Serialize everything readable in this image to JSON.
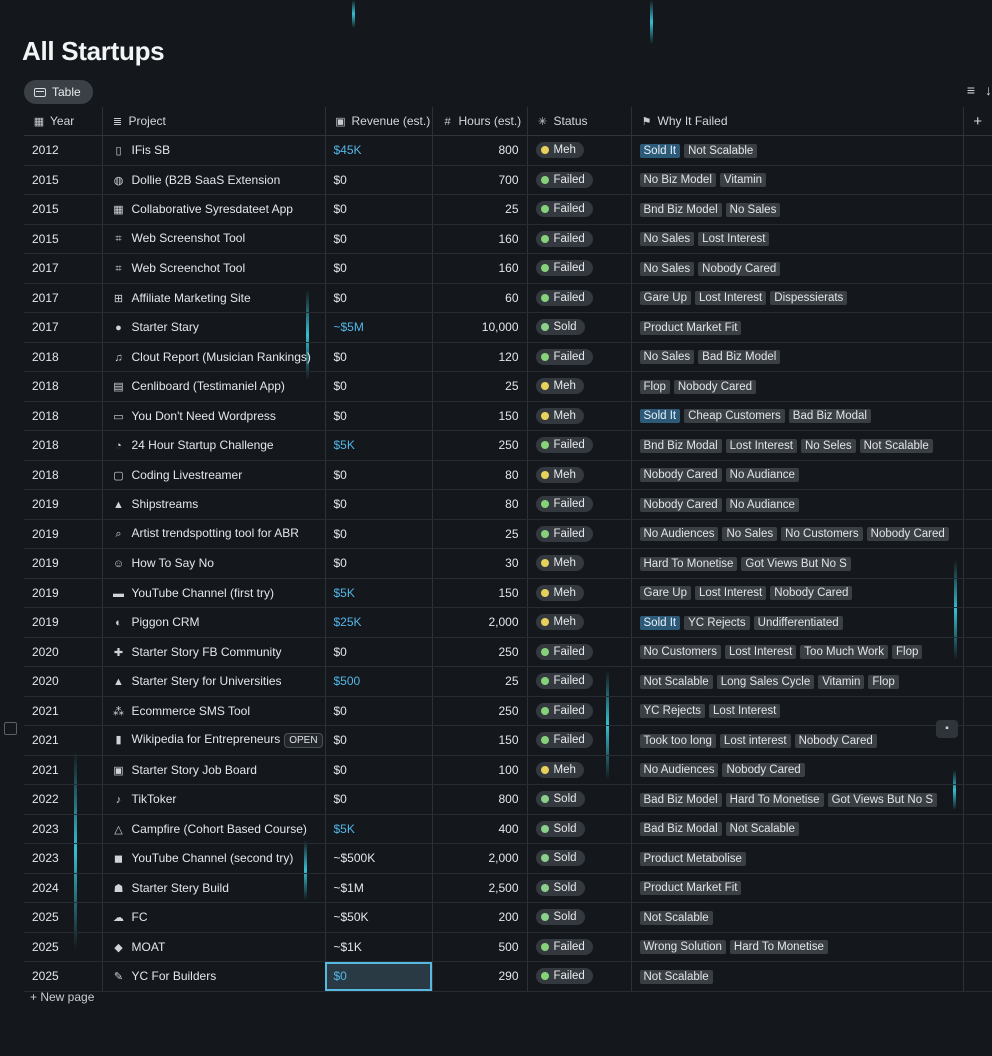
{
  "title": "All Startups",
  "view_tab": "Table",
  "columns": {
    "year": "Year",
    "project": "Project",
    "revenue": "Revenue (est.)",
    "hours": "Hours (est.)",
    "status": "Status",
    "why": "Why It Failed"
  },
  "colors": {
    "failed": "#86d27a",
    "meh": "#e6d25a",
    "sold": "#8ad08a"
  },
  "rows": [
    {
      "year": "2012",
      "icon": "phone-icon",
      "g": "▯",
      "project": "IFis SB",
      "revenue": "$45K",
      "rev_blue": true,
      "hours": "800",
      "status": "Meh",
      "tags": [
        "Sold It",
        "Not Scalable"
      ],
      "hl": [
        0
      ]
    },
    {
      "year": "2015",
      "icon": "globe-icon",
      "g": "◍",
      "project": "Dollie (B2B SaaS Extension",
      "revenue": "$0",
      "hours": "700",
      "status": "Failed",
      "tags": [
        "No Biz Model",
        "Vitamin"
      ]
    },
    {
      "year": "2015",
      "icon": "spreadsheet-icon",
      "g": "▦",
      "project": "Collaborative Syresdateet App",
      "revenue": "$0",
      "hours": "25",
      "status": "Failed",
      "tags": [
        "Bnd Biz Model",
        "No Sales"
      ]
    },
    {
      "year": "2015",
      "icon": "crop-icon",
      "g": "⌗",
      "project": "Web Screenshot Tool",
      "revenue": "$0",
      "hours": "160",
      "status": "Failed",
      "tags": [
        "No Sales",
        "Lost Interest"
      ]
    },
    {
      "year": "2017",
      "icon": "crop-icon",
      "g": "⌗",
      "project": "Web Screenchot Tool",
      "revenue": "$0",
      "hours": "160",
      "status": "Failed",
      "tags": [
        "No Sales",
        "Nobody Cared"
      ]
    },
    {
      "year": "2017",
      "icon": "grid-icon",
      "g": "⊞",
      "project": "Affiliate Marketing Site",
      "revenue": "$0",
      "hours": "60",
      "status": "Failed",
      "tags": [
        "Gare Up",
        "Lost Interest",
        "Dispessierats"
      ]
    },
    {
      "year": "2017",
      "icon": "circle-icon",
      "g": "●",
      "project": "Starter Stary",
      "revenue": "~$5M",
      "rev_blue": true,
      "hours": "10,000",
      "status": "Sold",
      "tags": [
        "Product Market Fit"
      ]
    },
    {
      "year": "2018",
      "icon": "music-icon",
      "g": "♫",
      "project": "Clout Report (Musician Rankings)",
      "revenue": "$0",
      "hours": "120",
      "status": "Failed",
      "tags": [
        "No Sales",
        "Bad Biz Model"
      ]
    },
    {
      "year": "2018",
      "icon": "clipboard-icon",
      "g": "▤",
      "project": "Cenliboard (Testimaniel App)",
      "revenue": "$0",
      "hours": "25",
      "status": "Meh",
      "tags": [
        "Flop",
        "Nobody Cared"
      ]
    },
    {
      "year": "2018",
      "icon": "window-icon",
      "g": "▭",
      "project": "You Don't Need Wordpress",
      "revenue": "$0",
      "hours": "150",
      "status": "Meh",
      "tags": [
        "Sold It",
        "Cheap Customers",
        "Bad Biz Modal"
      ],
      "hl": [
        0
      ]
    },
    {
      "year": "2018",
      "icon": "clock-icon",
      "g": "◔",
      "project": "24 Hour Startup Challenge",
      "revenue": "$5K",
      "rev_blue": true,
      "hours": "250",
      "status": "Failed",
      "tags": [
        "Bnd Biz Modal",
        "Lost Interest",
        "No Seles",
        "Not Scalable"
      ]
    },
    {
      "year": "2018",
      "icon": "file-icon",
      "g": "▢",
      "project": "Coding Livestreamer",
      "revenue": "$0",
      "hours": "80",
      "status": "Meh",
      "tags": [
        "Nobody Cared",
        "No Audiance"
      ]
    },
    {
      "year": "2019",
      "icon": "ship-icon",
      "g": "▲",
      "project": "Shipstreams",
      "revenue": "$0",
      "hours": "80",
      "status": "Failed",
      "tags": [
        "Nobody Cared",
        "No Audiance"
      ]
    },
    {
      "year": "2019",
      "icon": "search-icon",
      "g": "⌕",
      "project": "Artist trendspotting tool for ABR",
      "revenue": "$0",
      "hours": "25",
      "status": "Failed",
      "tags": [
        "No Audiences",
        "No Sales",
        "No Customers",
        "Nobody Cared"
      ]
    },
    {
      "year": "2019",
      "icon": "person-icon",
      "g": "☺",
      "project": "How To Say No",
      "revenue": "$0",
      "hours": "30",
      "status": "Meh",
      "tags": [
        "Hard To Monetise",
        "Got Views But No S"
      ]
    },
    {
      "year": "2019",
      "icon": "tv-icon",
      "g": "▬",
      "project": "YouTube Channel (first try)",
      "revenue": "$5K",
      "rev_blue": true,
      "hours": "150",
      "status": "Meh",
      "tags": [
        "Gare Up",
        "Lost Interest",
        "Nobody Cared"
      ]
    },
    {
      "year": "2019",
      "icon": "pigeon-icon",
      "g": "◐",
      "project": "Piggon CRM",
      "revenue": "$25K",
      "rev_blue": true,
      "hours": "2,000",
      "status": "Meh",
      "tags": [
        "Sold It",
        "YC Rejects",
        "Undifferentiated"
      ],
      "hl": [
        0
      ]
    },
    {
      "year": "2020",
      "icon": "people-icon",
      "g": "✚",
      "project": "Starter Story FB Community",
      "revenue": "$0",
      "hours": "250",
      "status": "Failed",
      "tags": [
        "No Customers",
        "Lost Interest",
        "Too Much Work",
        "Flop"
      ]
    },
    {
      "year": "2020",
      "icon": "graduation-icon",
      "g": "▲",
      "project": "Starter Stery for Universities",
      "revenue": "$500",
      "rev_blue": true,
      "hours": "25",
      "status": "Failed",
      "tags": [
        "Not Scalable",
        "Long Sales Cycle",
        "Vitamin",
        "Flop"
      ]
    },
    {
      "year": "2021",
      "icon": "network-icon",
      "g": "⁂",
      "project": "Ecommerce SMS Tool",
      "revenue": "$0",
      "hours": "250",
      "status": "Failed",
      "tags": [
        "YC Rejects",
        "Lost Interest"
      ]
    },
    {
      "year": "2021",
      "icon": "bookmark-icon",
      "g": "▮",
      "project": "Wikipedia for Entrepreneurs",
      "revenue": "$0",
      "hours": "150",
      "status": "Failed",
      "tags": [
        "Took too long",
        "Lost interest",
        "Nobody Cared"
      ],
      "open": "OPEN"
    },
    {
      "year": "2021",
      "icon": "briefcase-icon",
      "g": "▣",
      "project": "Starter Story Job Board",
      "revenue": "$0",
      "hours": "100",
      "status": "Meh",
      "tags": [
        "No Audiences",
        "Nobody Cared"
      ]
    },
    {
      "year": "2022",
      "icon": "tiktok-icon",
      "g": "♪",
      "project": "TikToker",
      "revenue": "$0",
      "hours": "800",
      "status": "Sold",
      "tags": [
        "Bad Biz Model",
        "Hard To Monetise",
        "Got Views But No S"
      ]
    },
    {
      "year": "2023",
      "icon": "triangle-icon",
      "g": "△",
      "project": "Campfire (Cohort Based Course)",
      "revenue": "$5K",
      "rev_blue": true,
      "hours": "400",
      "status": "Sold",
      "tags": [
        "Bad Biz Modal",
        "Not Scalable"
      ]
    },
    {
      "year": "2023",
      "icon": "video-icon",
      "g": "◼",
      "project": "YouTube Channel (second try)",
      "revenue": "~$500K",
      "hours": "2,000",
      "status": "Sold",
      "tags": [
        "Product Metabolise"
      ]
    },
    {
      "year": "2024",
      "icon": "builder-icon",
      "g": "☗",
      "project": "Starter Stery Build",
      "revenue": "~$1M",
      "hours": "2,500",
      "status": "Sold",
      "tags": [
        "Product Market Fit"
      ]
    },
    {
      "year": "2025",
      "icon": "cloud-icon",
      "g": "☁",
      "project": "FC",
      "revenue": "~$50K",
      "hours": "200",
      "status": "Sold",
      "tags": [
        "Not Scalable"
      ]
    },
    {
      "year": "2025",
      "icon": "stack-icon",
      "g": "◆",
      "project": "MOAT",
      "revenue": "~$1K",
      "hours": "500",
      "status": "Failed",
      "tags": [
        "Wrong Solution",
        "Hard To Monetise"
      ]
    },
    {
      "year": "2025",
      "icon": "edit-icon",
      "g": "✎",
      "project": "YC For Builders",
      "revenue": "$0",
      "rev_blue": true,
      "hours": "290",
      "status": "Failed",
      "tags": [
        "Not Scalable"
      ],
      "selected": true
    }
  ],
  "new_page_label": "+  New page"
}
